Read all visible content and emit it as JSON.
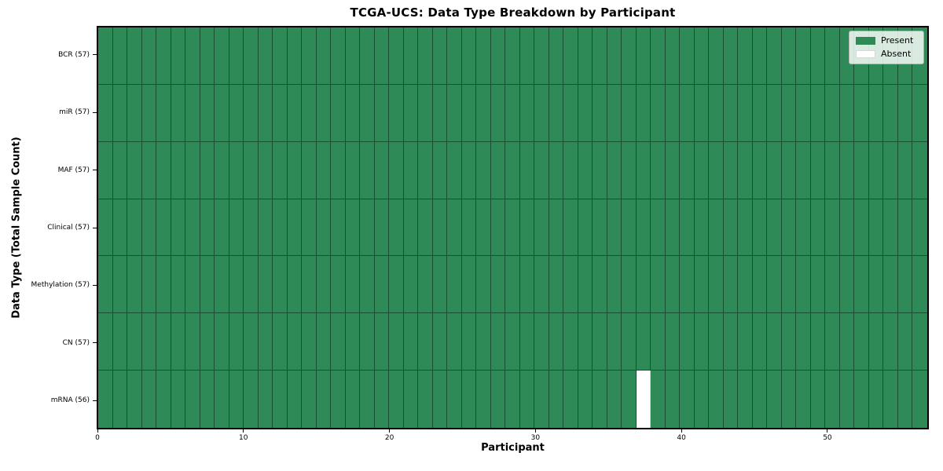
{
  "figure": {
    "title": "TCGA-UCS: Data Type Breakdown by Participant",
    "xlabel": "Participant",
    "ylabel": "Data Type (Total Sample Count)"
  },
  "legend": {
    "items": [
      {
        "label": "Present",
        "color": "#2e8b57"
      },
      {
        "label": "Absent",
        "color": "#ffffff"
      }
    ],
    "position": "upper right"
  },
  "chart_data": {
    "type": "heatmap",
    "title": "TCGA-UCS: Data Type Breakdown by Participant",
    "xlabel": "Participant",
    "ylabel": "Data Type (Total Sample Count)",
    "n_participants": 57,
    "xlim": [
      0,
      57
    ],
    "x_ticks": [
      0,
      10,
      20,
      30,
      40,
      50
    ],
    "grid": "cell-borders",
    "legend_position": "upper right",
    "colors": {
      "present": "#2e8b57",
      "absent": "#ffffff"
    },
    "rows": [
      {
        "label": "BCR (57)",
        "data_type": "BCR",
        "total_sample_count": 57,
        "absent_participants": []
      },
      {
        "label": "miR (57)",
        "data_type": "miR",
        "total_sample_count": 57,
        "absent_participants": []
      },
      {
        "label": "MAF (57)",
        "data_type": "MAF",
        "total_sample_count": 57,
        "absent_participants": []
      },
      {
        "label": "Clinical (57)",
        "data_type": "Clinical",
        "total_sample_count": 57,
        "absent_participants": []
      },
      {
        "label": "Methylation (57)",
        "data_type": "Methylation",
        "total_sample_count": 57,
        "absent_participants": []
      },
      {
        "label": "CN (57)",
        "data_type": "CN",
        "total_sample_count": 57,
        "absent_participants": []
      },
      {
        "label": "mRNA (56)",
        "data_type": "mRNA",
        "total_sample_count": 56,
        "absent_participants": [
          37
        ]
      }
    ]
  }
}
